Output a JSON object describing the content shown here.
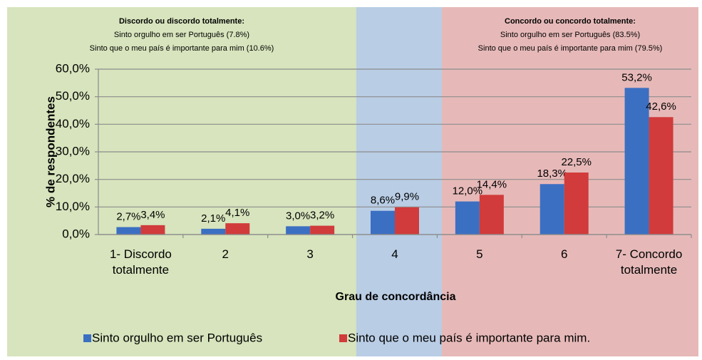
{
  "chart_data": {
    "type": "bar",
    "categories": [
      "1- Discordo totalmente",
      "2",
      "3",
      "4",
      "5",
      "6",
      "7- Concordo totalmente"
    ],
    "series": [
      {
        "name": "Sinto orgulho em ser Português",
        "color": "#3b6fc2",
        "values": [
          2.7,
          2.1,
          3.0,
          8.6,
          12.0,
          18.3,
          53.2
        ],
        "value_labels": [
          "2,7%",
          "2,1%",
          "3,0%",
          "8,6%",
          "12,0%",
          "18,3%",
          "53,2%"
        ]
      },
      {
        "name": "Sinto que o meu país é importante para mim.",
        "color": "#d13b3b",
        "values": [
          3.4,
          4.1,
          3.2,
          9.9,
          14.4,
          22.5,
          42.6
        ],
        "value_labels": [
          "3,4%",
          "4,1%",
          "3,2%",
          "9,9%",
          "14,4%",
          "22,5%",
          "42,6%"
        ]
      }
    ],
    "ylim": [
      0,
      60
    ],
    "yticks": [
      {
        "value": 0,
        "label": "0,0%"
      },
      {
        "value": 10,
        "label": "10,0%"
      },
      {
        "value": 20,
        "label": "20,0%"
      },
      {
        "value": 30,
        "label": "30,0%"
      },
      {
        "value": 40,
        "label": "40,0%"
      },
      {
        "value": 50,
        "label": "50,0%"
      },
      {
        "value": 60,
        "label": "60,0%"
      }
    ],
    "grid": true,
    "y_label": "% de respondentes",
    "x_label": "Grau de concordância",
    "annotations": [
      {
        "title": "Discordo ou discordo totalmente:",
        "lines": [
          "Sinto orgulho em ser Português (7.8%)",
          "Sinto que o meu país é importante para mim (10.6%)"
        ]
      },
      {
        "title": "Concordo ou concordo totalmente:",
        "lines": [
          "Sinto orgulho em ser Português (83.5%)",
          "Sinto que o meu país é importante para mim (79.5%)"
        ]
      }
    ]
  }
}
